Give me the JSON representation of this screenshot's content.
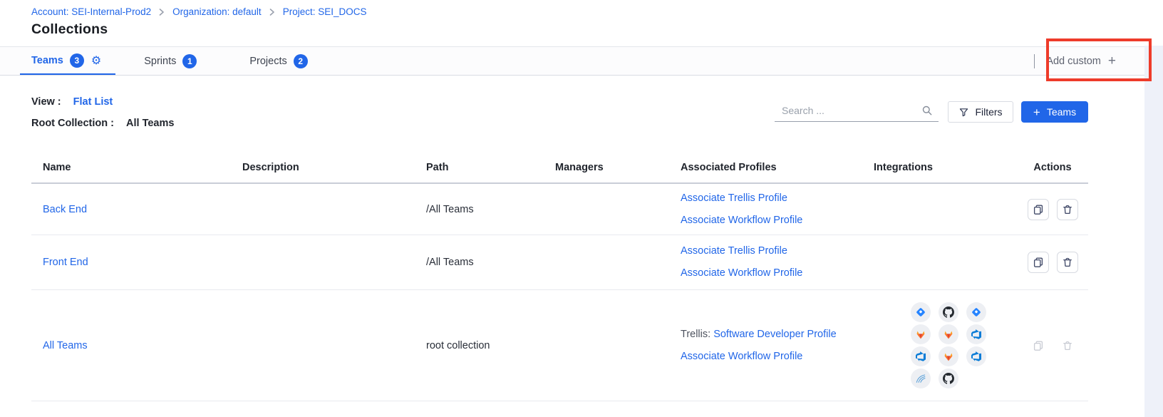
{
  "breadcrumb": {
    "account": "Account: SEI-Internal-Prod2",
    "organization": "Organization: default",
    "project": "Project: SEI_DOCS"
  },
  "page": {
    "title": "Collections"
  },
  "tabs": {
    "teams": {
      "label": "Teams",
      "count": "3"
    },
    "sprints": {
      "label": "Sprints",
      "count": "1"
    },
    "projects": {
      "label": "Projects",
      "count": "2"
    },
    "add_custom": {
      "label": "Add custom",
      "plus": "+"
    }
  },
  "toolbar": {
    "view_label": "View :",
    "view_value": "Flat List",
    "root_collection_label": "Root Collection :",
    "root_collection_value": "All Teams",
    "search_placeholder": "Search ...",
    "filters_label": "Filters",
    "new_team_plus": "+",
    "new_team_label": "Teams"
  },
  "table": {
    "columns": [
      "Name",
      "Description",
      "Path",
      "Managers",
      "Associated Profiles",
      "Integrations",
      "Actions"
    ],
    "rows": [
      {
        "name": "Back End",
        "description": "",
        "path": "/All Teams",
        "managers": "",
        "profiles": [
          {
            "prefix": "",
            "link": "Associate Trellis Profile"
          },
          {
            "prefix": "",
            "link": "Associate Workflow Profile"
          }
        ],
        "integrations": [],
        "actions_enabled": true
      },
      {
        "name": "Front End",
        "description": "",
        "path": "/All Teams",
        "managers": "",
        "profiles": [
          {
            "prefix": "",
            "link": "Associate Trellis Profile"
          },
          {
            "prefix": "",
            "link": "Associate Workflow Profile"
          }
        ],
        "integrations": [],
        "actions_enabled": true
      },
      {
        "name": "All Teams",
        "description": "",
        "path": "root collection",
        "managers": "",
        "profiles": [
          {
            "prefix": "Trellis: ",
            "link": "Software Developer Profile"
          },
          {
            "prefix": "",
            "link": "Associate Workflow Profile"
          }
        ],
        "integrations": [
          "jira",
          "github",
          "jira",
          "gitlab",
          "gitlab",
          "azure-devops",
          "azure-devops",
          "gitlab",
          "azure-devops",
          "sonarqube",
          "github"
        ],
        "actions_enabled": false
      }
    ]
  },
  "icons": {
    "tab_settings": "gear",
    "breadcrumb_separator": "chevron-right",
    "search": "magnifier",
    "filters": "funnel",
    "row_actions": [
      "copy",
      "delete"
    ]
  },
  "colors": {
    "accent_blue": "#2166e8",
    "annotation_red": "#ee3b2a",
    "jira_blue": "#2684ff",
    "github_black": "#24292f",
    "gitlab_orange": "#fc6d26",
    "azure_devops_blue": "#0a7cd7",
    "sonar_light_blue": "#549ed8"
  }
}
